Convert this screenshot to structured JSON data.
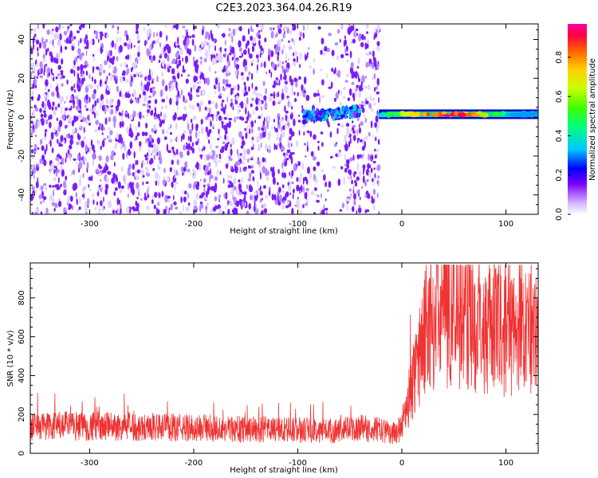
{
  "title": "C2E3.2023.364.04.26.R19",
  "chart_data": [
    {
      "type": "heatmap",
      "title": "C2E3.2023.364.04.26.R19",
      "xlabel": "Height of straight line (km)",
      "ylabel": "Frequency (Hz)",
      "xlim": [
        -357,
        131
      ],
      "ylim": [
        -50,
        48
      ],
      "xticks": [
        -300,
        -200,
        -100,
        0,
        100
      ],
      "yticks": [
        -40,
        -20,
        0,
        20,
        40
      ],
      "colorbar": {
        "label": "Normalized spectral amplitude",
        "range": [
          0,
          0.97
        ],
        "ticks": [
          0.0,
          0.2,
          0.4,
          0.6,
          0.8
        ],
        "colormap": [
          "#ffffff",
          "#cfb2ff",
          "#7b00ff",
          "#0000ff",
          "#00c8ff",
          "#00ff80",
          "#40ff00",
          "#c8ff00",
          "#ffd000",
          "#ff6000",
          "#ff0040",
          "#ff00a0"
        ]
      },
      "features": [
        {
          "name": "noise",
          "x_range": [
            -357,
            -22
          ],
          "y_range": [
            -50,
            48
          ],
          "amplitude": 0.15
        },
        {
          "name": "signal-onset",
          "x_range": [
            -95,
            -40
          ],
          "y_start": 0,
          "y_end": 3,
          "amplitude": 0.35
        },
        {
          "name": "carrier",
          "x_range": [
            -22,
            131
          ],
          "y_center": 1.5,
          "amplitude_peak": 0.95
        }
      ]
    },
    {
      "type": "line",
      "xlabel": "Height of straight line (km)",
      "ylabel": "SNR (10 * v/v)",
      "xlim": [
        -357,
        131
      ],
      "ylim": [
        0,
        980
      ],
      "xticks": [
        -300,
        -200,
        -100,
        0,
        100
      ],
      "yticks": [
        0,
        200,
        400,
        600,
        800
      ],
      "series": [
        {
          "color": "#f03232",
          "x": [
            -357,
            -300,
            -250,
            -200,
            -150,
            -100,
            -60,
            -40,
            -20,
            -5,
            0,
            10,
            20,
            30,
            45,
            60,
            80,
            100,
            120,
            131
          ],
          "y": [
            140,
            140,
            135,
            130,
            125,
            120,
            118,
            130,
            120,
            100,
            150,
            350,
            580,
            720,
            740,
            700,
            660,
            640,
            620,
            620
          ]
        }
      ]
    }
  ]
}
